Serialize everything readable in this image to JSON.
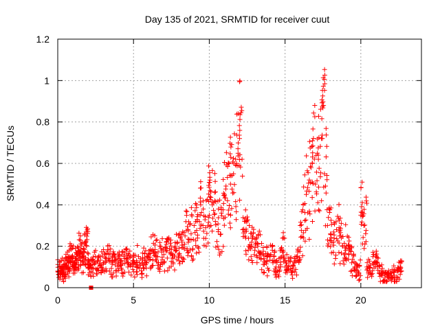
{
  "chart_data": {
    "type": "scatter",
    "title": "Day 135 of 2021, SRMTID for receiver cuut",
    "xlabel": "GPS time / hours",
    "ylabel": "SRMTID / TECUs",
    "xlim": [
      0,
      24
    ],
    "ylim": [
      0,
      1.2
    ],
    "x_ticks": [
      0,
      5,
      10,
      15,
      20
    ],
    "x_tick_labels": [
      "0",
      "5",
      "10",
      "15",
      "20"
    ],
    "y_ticks": [
      0,
      0.2,
      0.4,
      0.6,
      0.8,
      1,
      1.2
    ],
    "y_tick_labels": [
      "0",
      "0.2",
      "0.4",
      "0.6",
      "0.8",
      "1",
      "1.2"
    ],
    "grid": true,
    "marker": "plus",
    "color": "#ff0000",
    "series": [
      {
        "name": "SRMTID",
        "x": [
          0.0,
          0.1,
          0.2,
          0.3,
          0.4,
          0.5,
          0.6,
          0.7,
          0.8,
          0.9,
          1.0,
          1.1,
          1.2,
          1.3,
          1.4,
          1.5,
          1.6,
          1.7,
          1.8,
          1.9,
          2.0,
          2.1,
          2.2,
          2.4,
          2.6,
          2.8,
          3.0,
          3.2,
          3.4,
          3.6,
          3.8,
          4.0,
          4.2,
          4.4,
          4.6,
          4.8,
          5.0,
          5.2,
          5.4,
          5.6,
          5.8,
          6.0,
          6.2,
          6.4,
          6.6,
          6.8,
          7.0,
          7.2,
          7.4,
          7.6,
          7.8,
          8.0,
          8.2,
          8.4,
          8.6,
          8.8,
          9.0,
          9.2,
          9.4,
          9.6,
          9.8,
          10.0,
          10.2,
          10.4,
          10.6,
          10.8,
          11.0,
          11.2,
          11.4,
          11.6,
          11.8,
          12.0,
          12.2,
          12.4,
          12.6,
          12.8,
          13.0,
          13.2,
          13.4,
          13.6,
          13.8,
          14.0,
          14.2,
          14.4,
          14.6,
          14.8,
          15.0,
          15.2,
          15.4,
          15.6,
          15.8,
          16.0,
          16.2,
          16.4,
          16.6,
          16.8,
          17.0,
          17.2,
          17.4,
          17.6,
          17.8,
          18.0,
          18.2,
          18.4,
          18.6,
          18.8,
          19.0,
          19.2,
          19.4,
          19.6,
          19.8,
          20.0,
          20.2,
          20.4,
          20.6,
          20.8,
          21.0,
          21.2,
          21.4,
          21.6,
          21.8,
          22.0,
          22.2,
          22.4,
          22.6
        ],
        "y": [
          0.08,
          0.1,
          0.09,
          0.07,
          0.11,
          0.1,
          0.12,
          0.13,
          0.15,
          0.14,
          0.13,
          0.12,
          0.14,
          0.16,
          0.18,
          0.17,
          0.15,
          0.19,
          0.21,
          0.2,
          0.12,
          0.1,
          0.11,
          0.12,
          0.13,
          0.11,
          0.12,
          0.14,
          0.13,
          0.12,
          0.11,
          0.12,
          0.13,
          0.14,
          0.12,
          0.11,
          0.12,
          0.13,
          0.12,
          0.14,
          0.13,
          0.16,
          0.18,
          0.17,
          0.15,
          0.19,
          0.16,
          0.18,
          0.17,
          0.16,
          0.18,
          0.19,
          0.22,
          0.25,
          0.28,
          0.26,
          0.3,
          0.33,
          0.35,
          0.38,
          0.42,
          0.35,
          0.4,
          0.32,
          0.28,
          0.36,
          0.45,
          0.42,
          0.5,
          0.55,
          0.6,
          0.72,
          0.28,
          0.24,
          0.2,
          0.22,
          0.18,
          0.2,
          0.16,
          0.14,
          0.13,
          0.15,
          0.12,
          0.1,
          0.14,
          0.18,
          0.1,
          0.09,
          0.08,
          0.12,
          0.15,
          0.3,
          0.4,
          0.45,
          0.52,
          0.6,
          0.5,
          0.62,
          0.72,
          0.55,
          0.3,
          0.26,
          0.22,
          0.28,
          0.25,
          0.2,
          0.18,
          0.16,
          0.12,
          0.1,
          0.08,
          0.35,
          0.3,
          0.1,
          0.08,
          0.15,
          0.12,
          0.07,
          0.06,
          0.05,
          0.06,
          0.07,
          0.06,
          0.08,
          0.1
        ]
      }
    ],
    "peaks": [
      {
        "x": 12.0,
        "y": 0.84
      },
      {
        "x": 17.6,
        "y": 1.06
      },
      {
        "x": 17.5,
        "y": 0.98
      },
      {
        "x": 11.4,
        "y": 0.73
      },
      {
        "x": 10.0,
        "y": 0.56
      },
      {
        "x": 16.8,
        "y": 0.71
      },
      {
        "x": 20.1,
        "y": 0.42
      }
    ],
    "square_marker": {
      "x": 2.2,
      "y": 0.0
    }
  }
}
